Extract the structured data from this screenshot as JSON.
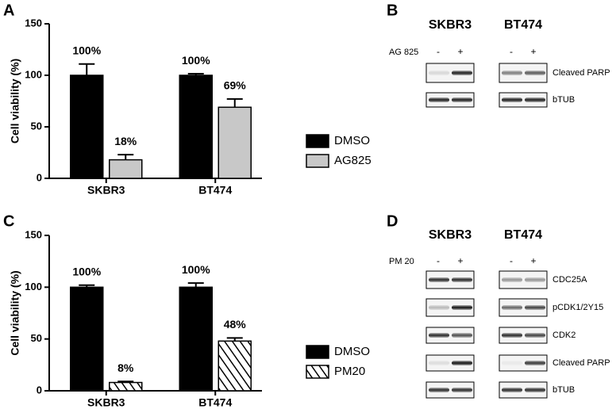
{
  "chart_data": [
    {
      "type": "bar",
      "panel": "A",
      "ylabel": "Cell viability (%)",
      "categories": [
        "SKBR3",
        "BT474"
      ],
      "series": [
        {
          "name": "DMSO",
          "color": "#000000",
          "values": [
            100,
            100
          ],
          "errors": [
            11,
            1.5
          ],
          "value_labels": [
            "100%",
            "100%"
          ]
        },
        {
          "name": "AG825",
          "color": "#c8c8c8",
          "values": [
            18,
            69
          ],
          "errors": [
            5,
            8
          ],
          "value_labels": [
            "18%",
            "69%"
          ]
        }
      ],
      "ylim": [
        0,
        150
      ],
      "yticks": [
        0,
        50,
        100,
        150
      ]
    },
    {
      "type": "bar",
      "panel": "C",
      "ylabel": "Cell viability (%)",
      "categories": [
        "SKBR3",
        "BT474"
      ],
      "series": [
        {
          "name": "DMSO",
          "color": "#000000",
          "values": [
            100,
            100
          ],
          "errors": [
            2,
            4
          ],
          "value_labels": [
            "100%",
            "100%"
          ]
        },
        {
          "name": "PM20",
          "color": "#000000",
          "hatch": true,
          "values": [
            8,
            48
          ],
          "errors": [
            1,
            3
          ],
          "value_labels": [
            "8%",
            "48%"
          ]
        }
      ],
      "ylim": [
        0,
        150
      ],
      "yticks": [
        0,
        50,
        100,
        150
      ]
    }
  ],
  "blots": [
    {
      "panel": "B",
      "cell_lines": [
        "SKBR3",
        "BT474"
      ],
      "treatment": "AG 825",
      "lanes": [
        "-",
        "+"
      ],
      "proteins": [
        "Cleaved PARP",
        "bTUB"
      ]
    },
    {
      "panel": "D",
      "cell_lines": [
        "SKBR3",
        "BT474"
      ],
      "treatment": "PM 20",
      "lanes": [
        "-",
        "+"
      ],
      "proteins": [
        "CDC25A",
        "pCDK1/2Y15",
        "CDK2",
        "Cleaved PARP",
        "bTUB"
      ]
    }
  ]
}
